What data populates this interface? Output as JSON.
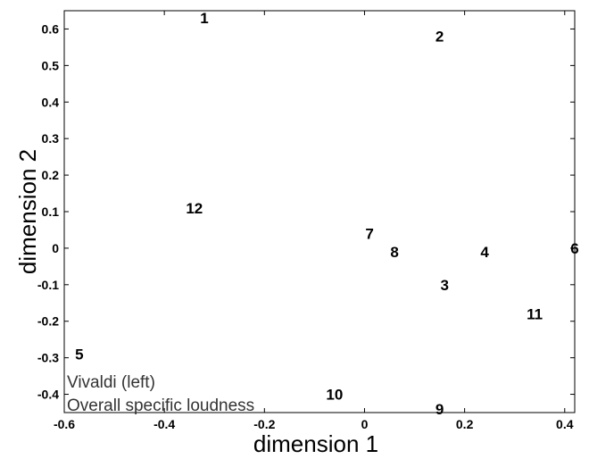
{
  "chart_data": {
    "type": "scatter",
    "title": "",
    "xlabel": "dimension 1",
    "ylabel": "dimension 2",
    "xlim": [
      -0.6,
      0.42
    ],
    "ylim": [
      -0.45,
      0.65
    ],
    "x_ticks": [
      -0.6,
      -0.4,
      -0.2,
      0,
      0.2,
      0.4
    ],
    "x_tick_labels": [
      "-0.6",
      "-0.4",
      "-0.2",
      "0",
      "0.2",
      "0.4"
    ],
    "y_ticks": [
      0.6,
      0.5,
      0.4,
      0.3,
      0.2,
      0.1,
      0,
      -0.1,
      -0.2,
      -0.3,
      -0.4
    ],
    "y_tick_labels": [
      "0.6",
      "0.5",
      "0.4",
      "0.3",
      "0.2",
      "0.1",
      "0",
      "-0.1",
      "-0.2",
      "-0.3",
      "-0.4"
    ],
    "grid": false,
    "points": [
      {
        "label": "1",
        "x": -0.32,
        "y": 0.63
      },
      {
        "label": "2",
        "x": 0.15,
        "y": 0.58
      },
      {
        "label": "3",
        "x": 0.16,
        "y": -0.1
      },
      {
        "label": "4",
        "x": 0.24,
        "y": -0.01
      },
      {
        "label": "5",
        "x": -0.57,
        "y": -0.29
      },
      {
        "label": "6",
        "x": 0.42,
        "y": 0.0
      },
      {
        "label": "7",
        "x": 0.01,
        "y": 0.04
      },
      {
        "label": "8",
        "x": 0.06,
        "y": -0.01
      },
      {
        "label": "9",
        "x": 0.15,
        "y": -0.44
      },
      {
        "label": "10",
        "x": -0.06,
        "y": -0.4
      },
      {
        "label": "11",
        "x": 0.34,
        "y": -0.18
      },
      {
        "label": "12",
        "x": -0.34,
        "y": 0.11
      }
    ],
    "annotations": [
      "Vivaldi (left)",
      "Overall specific loudness"
    ]
  }
}
